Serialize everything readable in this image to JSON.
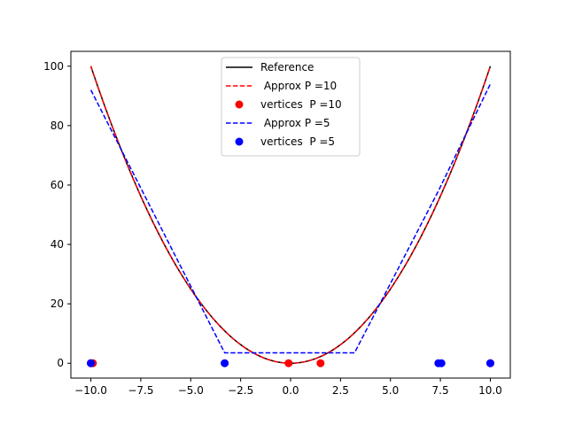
{
  "chart_data": {
    "type": "line",
    "title": "",
    "xlabel": "",
    "ylabel": "",
    "xlim": [
      -11,
      11
    ],
    "ylim": [
      -5,
      105
    ],
    "x_ticks": [
      -10,
      -7.5,
      -5,
      -2.5,
      0,
      2.5,
      5,
      7.5,
      10
    ],
    "x_tick_labels": [
      "−10.0",
      "−7.5",
      "−5.0",
      "−2.5",
      "0.0",
      "2.5",
      "5.0",
      "7.5",
      "10.0"
    ],
    "y_ticks": [
      0,
      20,
      40,
      60,
      80,
      100
    ],
    "y_tick_labels": [
      "0",
      "20",
      "40",
      "60",
      "80",
      "100"
    ],
    "grid": false,
    "legend_position": "top-center",
    "series": [
      {
        "name": "Reference",
        "kind": "line",
        "function": "x^2",
        "domain": [
          -10,
          10
        ],
        "color": "#000000",
        "style": "solid"
      },
      {
        "name": " Approx P =10",
        "kind": "line",
        "x": [
          -10,
          -9.9,
          1.5,
          10
        ],
        "y": [
          100,
          98,
          3.5,
          100
        ],
        "note_shape": "overlaps reference",
        "color": "#ff0000",
        "style": "dashed"
      },
      {
        "name": "vertices  P =10",
        "kind": "scatter",
        "x": [
          -10,
          -9.9,
          -0.1,
          1.5,
          10
        ],
        "y": [
          0,
          0,
          0,
          0,
          0
        ],
        "color": "#ff0000"
      },
      {
        "name": " Approx P =5",
        "kind": "line",
        "x": [
          -10,
          -3.3,
          3.2,
          7.4,
          10
        ],
        "y": [
          92,
          3.5,
          3.5,
          58,
          94
        ],
        "color": "#0000ff",
        "style": "dashed"
      },
      {
        "name": "vertices  P =5",
        "kind": "scatter",
        "x": [
          -10,
          -3.3,
          7.4,
          7.55,
          10
        ],
        "y": [
          0,
          0,
          0,
          0,
          0
        ],
        "color": "#0000ff"
      }
    ]
  }
}
